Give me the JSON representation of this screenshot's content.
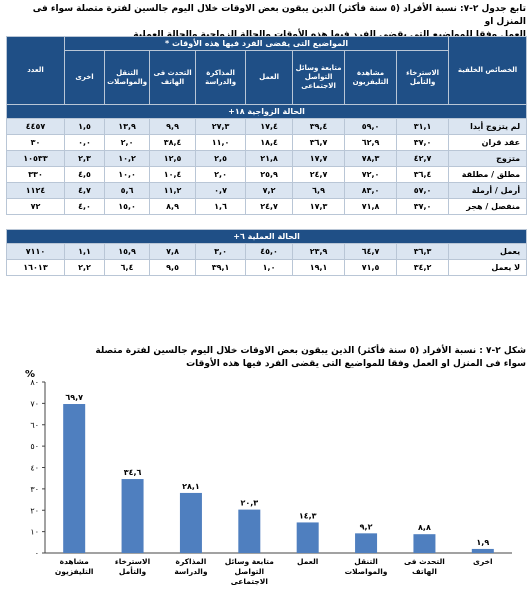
{
  "table": {
    "caption_line1": "تابع جدول ٢-٧:  نسبة الأفراد (٥ سنة فأكثر) الذين  يبقون بعض الاوقات خلال اليوم جالسين لفترة متصلة سواء فى المنزل او",
    "caption_line2": "العمل وفقا للمواضيع التى يقضى الفرد فيها هذه الأوقات والحالة الزواجية والحالة العملية",
    "header": {
      "characteristics": "الخصائص الخلفية",
      "topics_group": "المواضيع التى يقضى الفرد فيها هذه الأوقات *",
      "count": "العدد",
      "topics": [
        "الاسترخاء والتأمل",
        "مشاهدة التليفزيون",
        "متابعة وسائل التواصل الاجتماعى",
        "العمل",
        "المذاكرة والدراسة",
        "التحدث فى الهاتف",
        "التنقل والمواصلات",
        "اخرى"
      ]
    },
    "sections": [
      {
        "title": "الحالة الزواجية ١٨+",
        "rows": [
          {
            "label": "لم يتزوج أبدا",
            "values": [
              "٣١,١",
              "٥٩,٠",
              "٣٩,٤",
              "١٧,٤",
              "٢٧,٣",
              "٩,٩",
              "١٣,٩",
              "١,٥"
            ],
            "count": "٤٤٥٧"
          },
          {
            "label": "عقد قران",
            "values": [
              "٣٧,٠",
              "٦٢,٩",
              "٣٦,٧",
              "١٨,٤",
              "١١,٠",
              "٣٨,٤",
              "٢,٠",
              "٠,٠"
            ],
            "count": "٣٠"
          },
          {
            "label": "متزوج",
            "values": [
              "٤٢,٧",
              "٧٨,٣",
              "١٧,٧",
              "٢١,٨",
              "٢,٥",
              "١٢,٥",
              "١٠,٢",
              "٢,٣"
            ],
            "count": "١٠٥٣٣"
          },
          {
            "label": "مطلق / مطلقة",
            "values": [
              "٣٦,٤",
              "٧٢,٠",
              "٢٤,٧",
              "٢٥,٩",
              "٢,٠",
              "١٠,٤",
              "١٠,٠",
              "٤,٥"
            ],
            "count": "٣٣٠"
          },
          {
            "label": "أرمل / أرملة",
            "values": [
              "٥٧,٠",
              "٨٣,٠",
              "٦,٩",
              "٧,٢",
              "٠,٧",
              "١١,٢",
              "٥,٦",
              "٤,٧"
            ],
            "count": "١١٢٤"
          },
          {
            "label": "منفصل / هجر",
            "values": [
              "٣٧,٠",
              "٧١,٨",
              "١٧,٣",
              "٢٤,٧",
              "١,٦",
              "٨,٩",
              "١٥,٠",
              "٤,٠"
            ],
            "count": "٧٢"
          }
        ]
      },
      {
        "title": "الحالة العملية ٦+",
        "rows": [
          {
            "label": "يعمل",
            "values": [
              "٣٦,٣",
              "٦٤,٧",
              "٢٣,٩",
              "٤٥,٠",
              "٣,٠",
              "٧,٨",
              "١٥,٩",
              "١,١"
            ],
            "count": "٧١١٠"
          },
          {
            "label": "لا يعمل",
            "values": [
              "٣٤,٢",
              "٧١,٥",
              "١٩,١",
              "١,٠",
              "٣٩,١",
              "٩,٥",
              "٦,٤",
              "٢,٢"
            ],
            "count": "١٦٠١٣"
          }
        ]
      }
    ]
  },
  "chart_caption_line1": "شكل ٢-٧ :  نسبة الأفراد (٥ سنة فأكثر) الذين  يبقون بعض الاوقات خلال اليوم جالسين لفترة متصلة",
  "chart_caption_line2": "سواء فى المنزل او العمل وفقا للمواضيع التى يقضى الفرد فيها هذه الأوقات",
  "chart_data": {
    "type": "bar",
    "categories": [
      "مشاهدة التليفزيون",
      "الاسترخاء والتأمل",
      "المذاكرة والدراسة",
      "متابعة وسائل التواصل الاجتماعى",
      "العمل",
      "التنقل والمواصلات",
      "التحدث فى الهاتف",
      "اخرى"
    ],
    "values": [
      69.7,
      34.6,
      28.1,
      20.3,
      14.3,
      9.2,
      8.8,
      1.9
    ],
    "value_labels": [
      "٦٩,٧",
      "٣٤,٦",
      "٢٨,١",
      "٢٠,٣",
      "١٤,٣",
      "٩,٢",
      "٨,٨",
      "١,٩"
    ],
    "ylabel": "%",
    "ylim": [
      0,
      80
    ],
    "yticks": [
      0,
      10,
      20,
      30,
      40,
      50,
      60,
      70,
      80
    ],
    "ytick_labels": [
      "٠",
      "١٠",
      "٢٠",
      "٣٠",
      "٤٠",
      "٥٠",
      "٦٠",
      "٧٠",
      "٨٠"
    ],
    "bar_color": "#4f7fbf"
  }
}
